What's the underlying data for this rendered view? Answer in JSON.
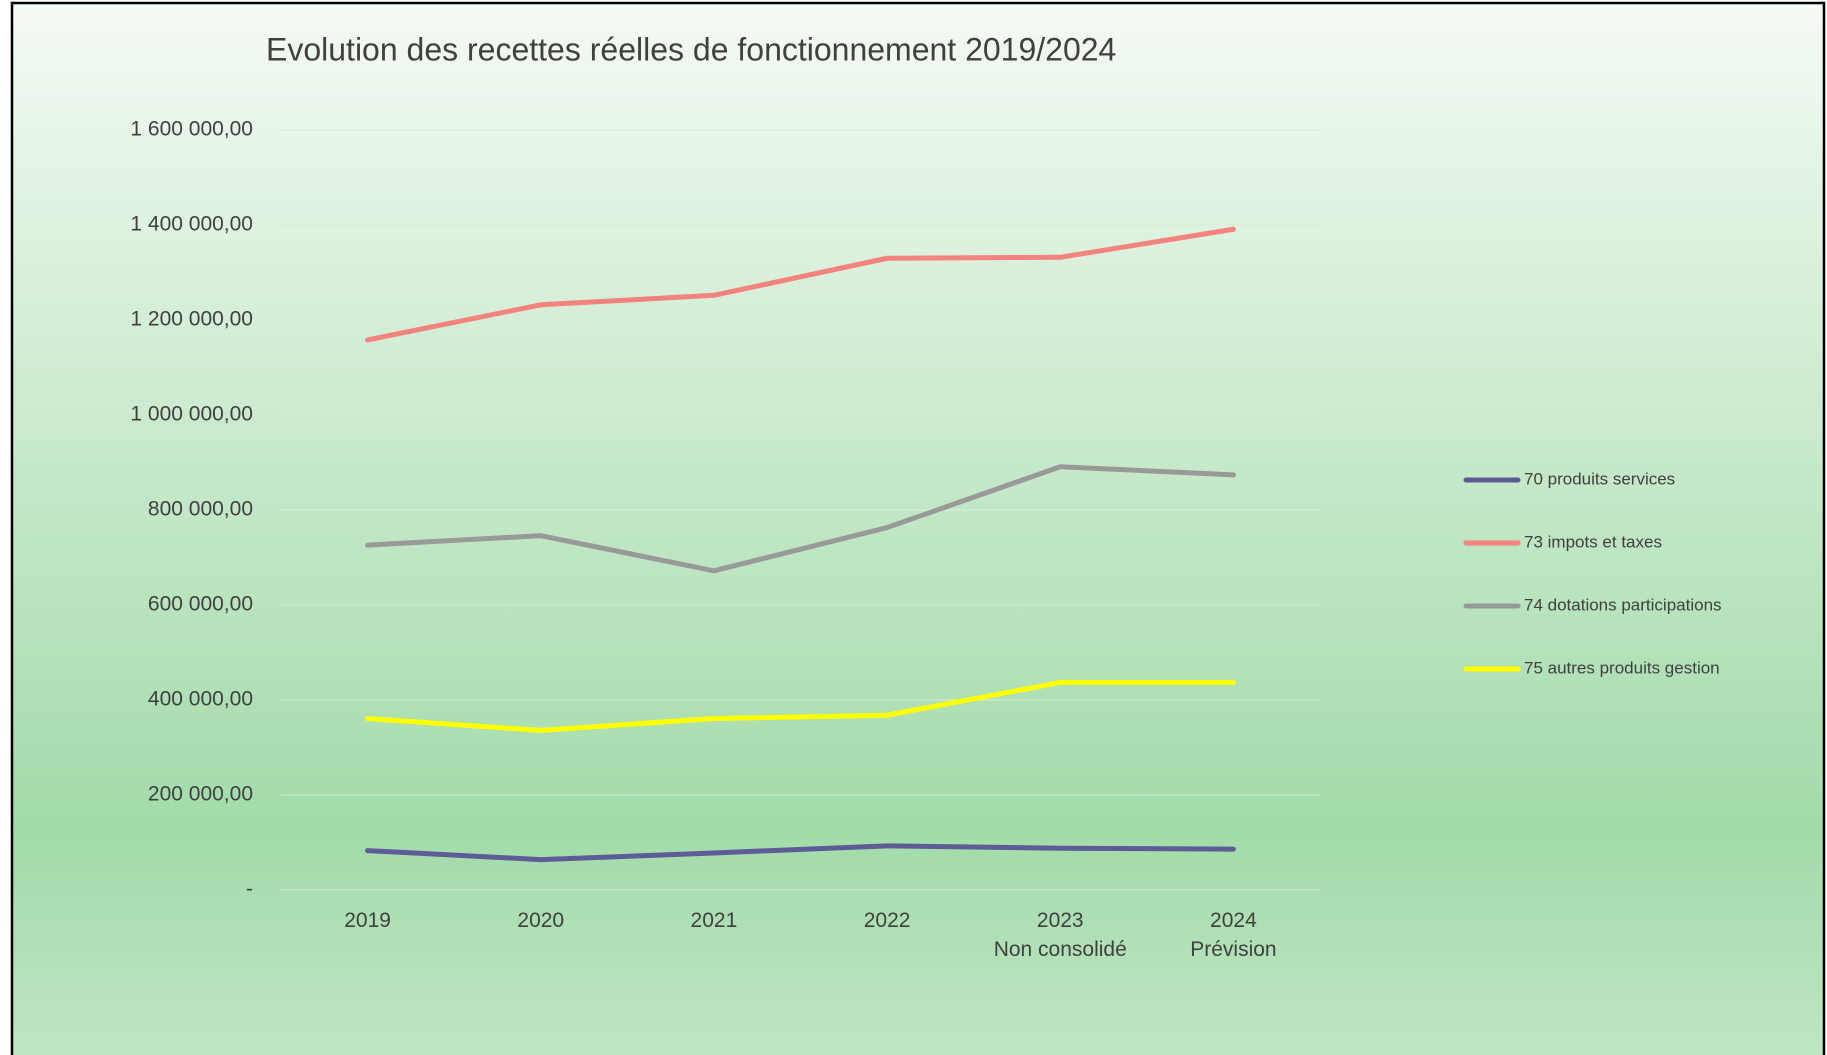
{
  "chart_data": {
    "type": "line",
    "title": "Evolution des recettes réelles de fonctionnement 2019/2024",
    "categories": [
      "2019",
      "2020",
      "2021",
      "2022",
      "2023\nNon consolidé",
      "2024\nPrévision"
    ],
    "series": [
      {
        "name": "70 produits services",
        "color": "#5d5c96",
        "values": [
          83000,
          64000,
          78000,
          93000,
          88000,
          86000
        ]
      },
      {
        "name": "73 impots et taxes",
        "color": "#f4837d",
        "values": [
          1158000,
          1232000,
          1252000,
          1330000,
          1332000,
          1391000
        ]
      },
      {
        "name": "74 dotations participations",
        "color": "#999999",
        "values": [
          726000,
          746000,
          672000,
          763000,
          891000,
          874000
        ]
      },
      {
        "name": "75 autres produits gestion",
        "color": "#ffff00",
        "values": [
          361000,
          336000,
          361000,
          368000,
          437000,
          437000
        ]
      }
    ],
    "ylim": [
      0,
      1600000
    ],
    "yticks": [
      {
        "value": 0,
        "label": "-"
      },
      {
        "value": 200000,
        "label": "200 000,00"
      },
      {
        "value": 400000,
        "label": "400 000,00"
      },
      {
        "value": 600000,
        "label": "600 000,00"
      },
      {
        "value": 800000,
        "label": "800 000,00"
      },
      {
        "value": 1000000,
        "label": "1 000 000,00"
      },
      {
        "value": 1200000,
        "label": "1 200 000,00"
      },
      {
        "value": 1400000,
        "label": "1 400 000,00"
      },
      {
        "value": 1600000,
        "label": "1 600 000,00"
      }
    ],
    "grid": true,
    "legend": "right"
  }
}
